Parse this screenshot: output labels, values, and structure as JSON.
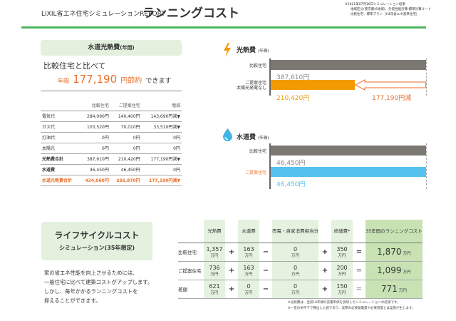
{
  "header": {
    "report": "LIXIL省エネ住宅シミュレーションREPORT",
    "title": "ランニングコスト",
    "notes": [
      "※2021年07月16日シミュレーション結果",
      "地域区分(東京都(6地域)、外皮性能計算:標準計算ルート",
      "比較住宅：標準プラン［H4年省エネ基準住宅］"
    ]
  },
  "annual": {
    "title": "水道光熱費",
    "title_suffix": "(年間)",
    "compare": "比較住宅と比べて",
    "prefix": "年間",
    "amount": "177,190",
    "unit": "円節約",
    "suffix": "できます",
    "columns": [
      "",
      "比較住宅",
      "ご提案住宅",
      "増減"
    ],
    "rows": [
      [
        "電気代",
        "284,090円",
        "140,400円",
        "143,690円減▼"
      ],
      [
        "ガス代",
        "103,520円",
        "70,010円",
        "33,510円減▼"
      ],
      [
        "灯油代",
        "0円",
        "0円",
        "0円"
      ],
      [
        "太陽光",
        "0円",
        "0円",
        "0円"
      ],
      [
        "光熱費合計",
        "387,610円",
        "210,420円",
        "177,190円減▼"
      ],
      [
        "水道費",
        "46,450円",
        "46,450円",
        "0円"
      ],
      [
        "水道光熱費合計",
        "434,060円",
        "256,870円",
        "177,190円減▼"
      ]
    ]
  },
  "energy_chart": {
    "title": "光熱費",
    "suffix": "(年間)",
    "label_compare": "比較住宅",
    "label_proposal": [
      "ご提案住宅",
      "太陽光発電なし"
    ],
    "compare_value": "387,610円",
    "proposal_value": "210,420円",
    "reduction": "177,190円減",
    "compare_yen": 387610,
    "proposal_yen": 210420
  },
  "water_chart": {
    "title": "水道費",
    "suffix": "(年間)",
    "label_compare": "比較住宅",
    "label_proposal": "ご提案住宅",
    "compare_value": "46,450円",
    "proposal_value": "46,450円"
  },
  "lifecycle": {
    "title": "ライフサイクルコスト",
    "subtitle": "シミュレーション(35年想定)",
    "desc": [
      "家の省エネ性能を向上させるためには、",
      "一般住宅に比べて建築コストがアップします。",
      "しかし、毎年かかるランニングコストを",
      "抑えることができます。"
    ],
    "headers": [
      "光熱費",
      "水道費",
      "売電・自家消費相当分",
      "修繕費*",
      "35年間のランニングコスト"
    ],
    "unit": "万円",
    "ops": [
      "+",
      "−",
      "+",
      "="
    ],
    "rows": [
      {
        "label": "比較住宅",
        "v": [
          "1,357",
          "163",
          "0",
          "350",
          "1,870"
        ]
      },
      {
        "label": "ご提案住宅",
        "v": [
          "736",
          "163",
          "0",
          "200",
          "1,099"
        ]
      },
      {
        "label": "差額",
        "v": [
          "621",
          "0",
          "0",
          "150",
          "771"
        ]
      }
    ],
    "footnotes": [
      "※光熱費は、当初10年間の売電単価を反映したシミュレーションの結果です。",
      "※一定の条件下で算出した値であり、実際の必要発電量や必要容量とは差異が生じます。"
    ]
  }
}
